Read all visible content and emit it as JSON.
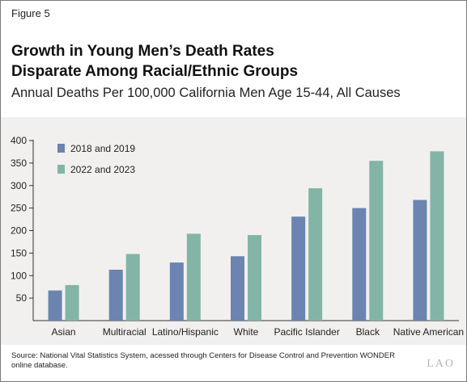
{
  "figure_label": "Figure 5",
  "title_line1": "Growth in Young Men’s Death Rates",
  "title_line2": "Disparate Among Racial/Ethnic Groups",
  "subtitle": "Annual Deaths Per 100,000 California Men Age 15-44, All Causes",
  "source": "Source: National Vital Statistics System, acessed through Centers for Disease Control and Prevention WONDER online database.",
  "logo": "LAO",
  "colors": {
    "series1": "#6b84b0",
    "series2": "#82b5a6",
    "panel": "#f1f0ef",
    "axis": "#333333"
  },
  "chart_data": {
    "type": "bar",
    "categories": [
      "Asian",
      "Multiracial",
      "Latino/Hispanic",
      "White",
      "Pacific Islander",
      "Black",
      "Native American"
    ],
    "series": [
      {
        "name": "2018 and 2019",
        "values": [
          67,
          113,
          129,
          143,
          231,
          250,
          268
        ]
      },
      {
        "name": "2022 and 2023",
        "values": [
          79,
          148,
          193,
          190,
          294,
          355,
          376
        ]
      }
    ],
    "y_ticks": [
      50,
      100,
      150,
      200,
      250,
      300,
      350,
      400
    ],
    "ylim": [
      0,
      400
    ],
    "grid": false,
    "legend": "top-left"
  }
}
